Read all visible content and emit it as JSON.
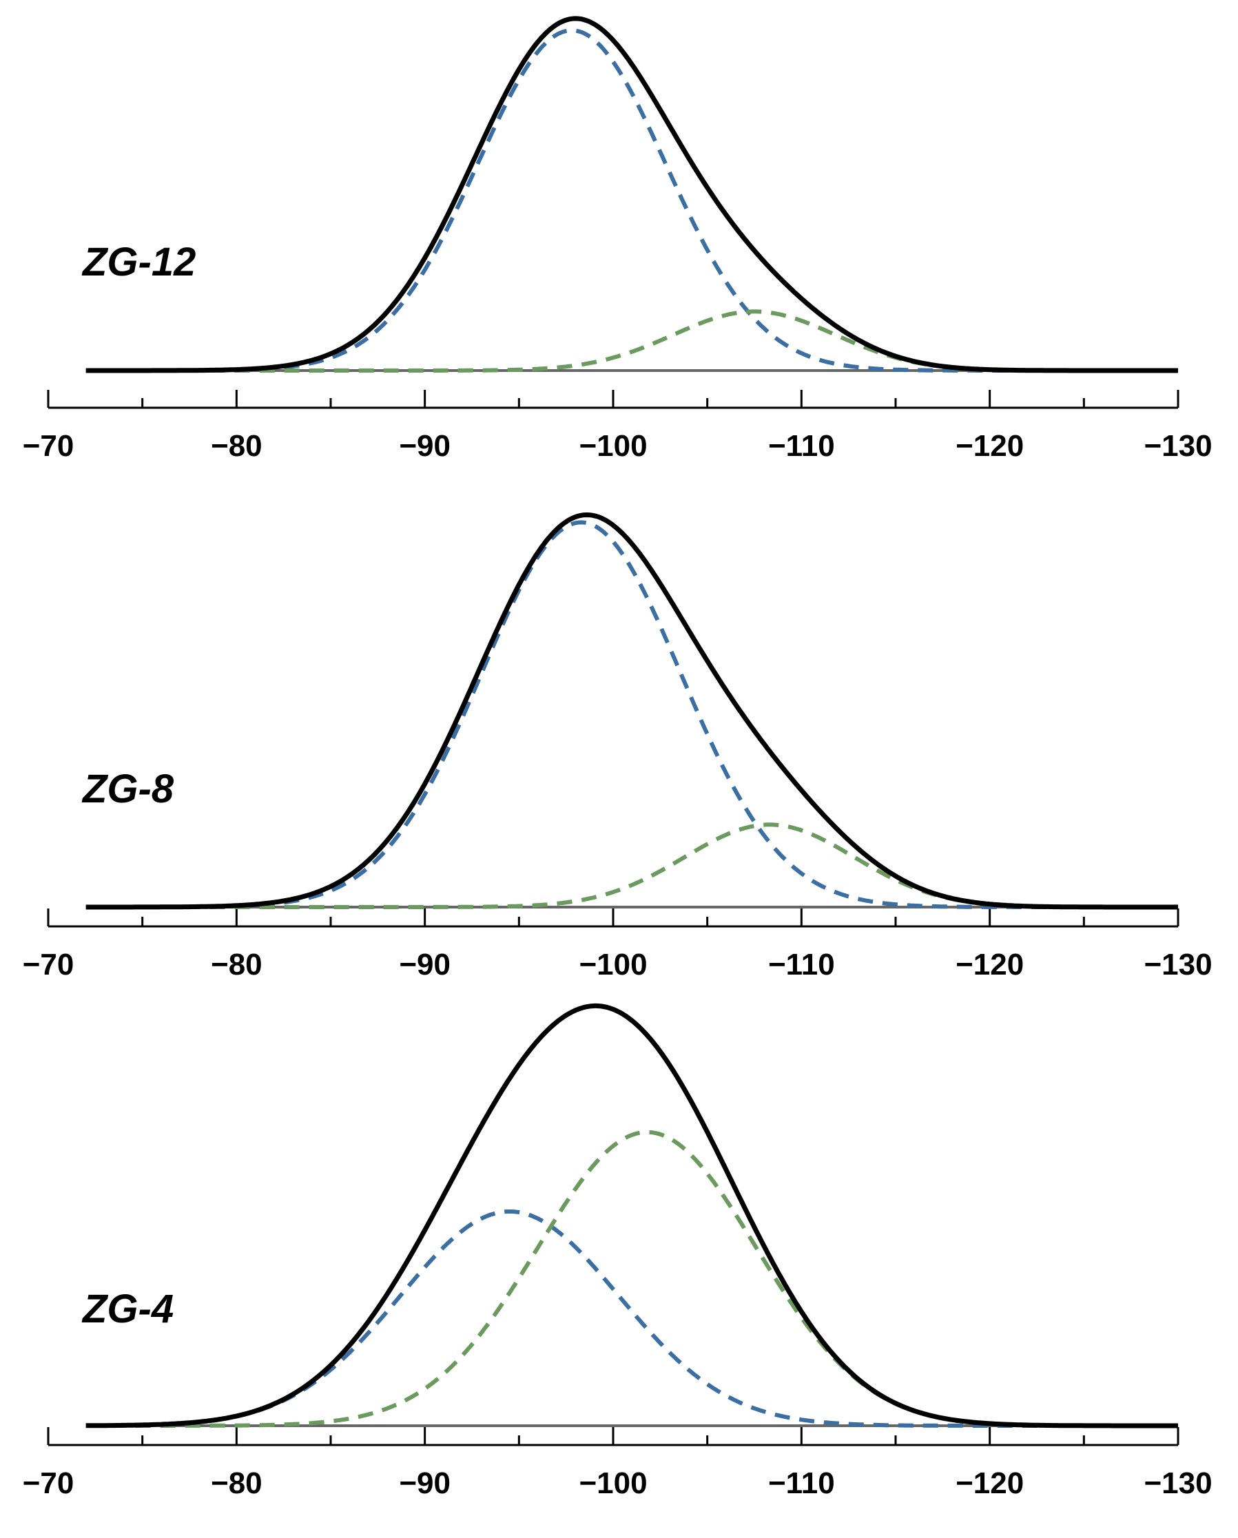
{
  "chart_data": [
    {
      "type": "line",
      "panel_label": "ZG-12",
      "x_reversed": true,
      "xlim": [
        -70,
        -130
      ],
      "xticks": [
        -70,
        -80,
        -90,
        -100,
        -110,
        -120,
        -130
      ],
      "xtick_labels": [
        "−70",
        "−80",
        "−90",
        "−100",
        "−110",
        "−120",
        "−130"
      ],
      "y_axis_shown": false,
      "series": [
        {
          "style": "solid",
          "color": "#000000",
          "components": [
            {
              "center": -97.8,
              "height": 1.0,
              "sigma": 5.2
            },
            {
              "center": -107.5,
              "height": 0.17,
              "sigma": 4.3
            }
          ]
        },
        {
          "style": "dashed",
          "color": "#3b6ea2",
          "components": [
            {
              "center": -97.8,
              "height": 0.98,
              "sigma": 5.0
            }
          ]
        },
        {
          "style": "dashed",
          "color": "#6b9a5e",
          "components": [
            {
              "center": -107.5,
              "height": 0.17,
              "sigma": 4.3
            }
          ]
        }
      ]
    },
    {
      "type": "line",
      "panel_label": "ZG-8",
      "x_reversed": true,
      "xlim": [
        -70,
        -130
      ],
      "xticks": [
        -70,
        -80,
        -90,
        -100,
        -110,
        -120,
        -130
      ],
      "xtick_labels": [
        "−70",
        "−80",
        "−90",
        "−100",
        "−110",
        "−120",
        "−130"
      ],
      "y_axis_shown": false,
      "series": [
        {
          "style": "solid",
          "color": "#000000",
          "components": [
            {
              "center": -98.3,
              "height": 0.98,
              "sigma": 5.5
            },
            {
              "center": -108.3,
              "height": 0.21,
              "sigma": 4.5
            }
          ]
        },
        {
          "style": "dashed",
          "color": "#3b6ea2",
          "components": [
            {
              "center": -98.3,
              "height": 0.98,
              "sigma": 5.3
            }
          ]
        },
        {
          "style": "dashed",
          "color": "#6b9a5e",
          "components": [
            {
              "center": -108.3,
              "height": 0.21,
              "sigma": 4.5
            }
          ]
        }
      ]
    },
    {
      "type": "line",
      "panel_label": "ZG-4",
      "x_reversed": true,
      "xlim": [
        -70,
        -130
      ],
      "xticks": [
        -70,
        -80,
        -90,
        -100,
        -110,
        -120,
        -130
      ],
      "xtick_labels": [
        "−70",
        "−80",
        "−90",
        "−100",
        "−110",
        "−120",
        "−130"
      ],
      "y_axis_shown": false,
      "series": [
        {
          "style": "solid",
          "color": "#000000",
          "components": [
            {
              "center": -94.5,
              "height": 0.54,
              "sigma": 5.8
            },
            {
              "center": -101.8,
              "height": 0.74,
              "sigma": 5.8
            }
          ]
        },
        {
          "style": "dashed",
          "color": "#3b6ea2",
          "components": [
            {
              "center": -94.5,
              "height": 0.54,
              "sigma": 5.8
            }
          ]
        },
        {
          "style": "dashed",
          "color": "#6b9a5e",
          "components": [
            {
              "center": -101.8,
              "height": 0.74,
              "sigma": 5.8
            }
          ]
        }
      ]
    }
  ]
}
